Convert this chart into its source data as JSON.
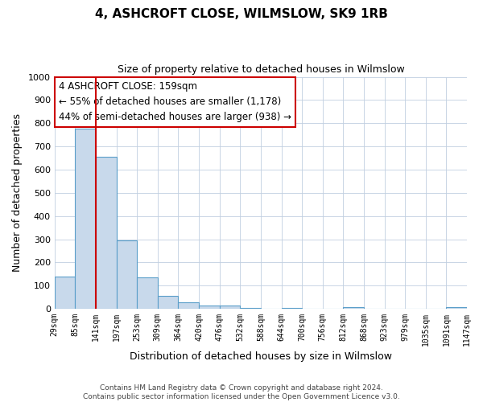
{
  "title": "4, ASHCROFT CLOSE, WILMSLOW, SK9 1RB",
  "subtitle": "Size of property relative to detached houses in Wilmslow",
  "xlabel": "Distribution of detached houses by size in Wilmslow",
  "ylabel": "Number of detached properties",
  "bar_values": [
    140,
    775,
    655,
    295,
    135,
    55,
    28,
    15,
    15,
    5,
    0,
    5,
    0,
    0,
    8,
    0,
    0,
    0,
    0,
    8
  ],
  "bin_labels": [
    "29sqm",
    "85sqm",
    "141sqm",
    "197sqm",
    "253sqm",
    "309sqm",
    "364sqm",
    "420sqm",
    "476sqm",
    "532sqm",
    "588sqm",
    "644sqm",
    "700sqm",
    "756sqm",
    "812sqm",
    "868sqm",
    "923sqm",
    "979sqm",
    "1035sqm",
    "1091sqm",
    "1147sqm"
  ],
  "bar_color": "#c8d9eb",
  "bar_edge_color": "#5a9ec9",
  "property_line_x": 2,
  "property_line_color": "#cc0000",
  "ylim": [
    0,
    1000
  ],
  "yticks": [
    0,
    100,
    200,
    300,
    400,
    500,
    600,
    700,
    800,
    900,
    1000
  ],
  "annotation_title": "4 ASHCROFT CLOSE: 159sqm",
  "annotation_line1": "← 55% of detached houses are smaller (1,178)",
  "annotation_line2": "44% of semi-detached houses are larger (938) →",
  "annotation_box_color": "#ffffff",
  "annotation_box_edge": "#cc0000",
  "footer_line1": "Contains HM Land Registry data © Crown copyright and database right 2024.",
  "footer_line2": "Contains public sector information licensed under the Open Government Licence v3.0.",
  "background_color": "#ffffff",
  "grid_color": "#c0cfe0"
}
